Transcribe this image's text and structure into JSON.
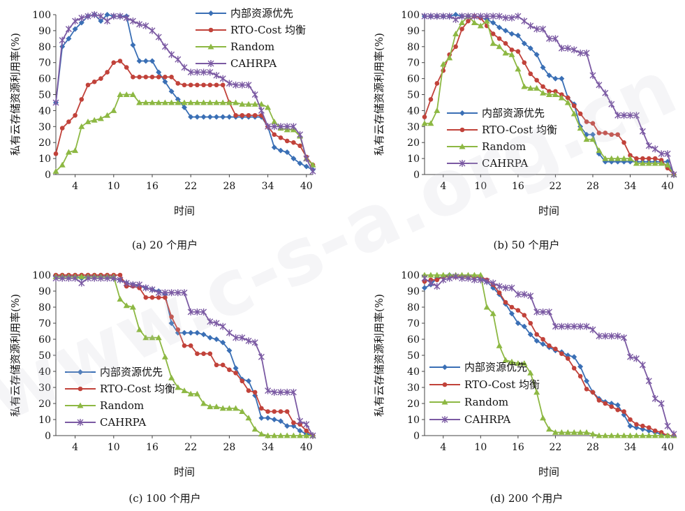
{
  "watermark": "www.c-s-a.org.cn",
  "charts": [
    {
      "type": "line",
      "caption": "(a) 20 个用户",
      "xlabel": "时间",
      "ylabel": "私有云存储资源利用率(%)",
      "xticks": [
        4,
        10,
        16,
        22,
        28,
        34,
        40
      ],
      "xlim": [
        1,
        41
      ],
      "ylim": [
        0,
        100
      ],
      "yticks": [
        0,
        10,
        20,
        30,
        40,
        50,
        60,
        70,
        80,
        90,
        100
      ],
      "legend_position": "top-right",
      "series": [
        {
          "name": "内部资源优先",
          "color": "#3a6fb5",
          "marker": "diamond",
          "values": [
            45,
            80,
            85,
            91,
            95,
            99,
            100,
            96,
            100,
            99,
            99,
            99,
            81,
            71,
            71,
            71,
            64,
            58,
            52,
            47,
            42,
            36,
            36,
            36,
            36,
            36,
            36,
            36,
            36,
            36,
            36,
            36,
            36,
            30,
            17,
            15,
            14,
            10,
            7,
            5,
            3
          ]
        },
        {
          "name": "RTO-Cost 均衡",
          "color": "#c1423a",
          "marker": "circle",
          "values": [
            13,
            29,
            33,
            37,
            47,
            56,
            58,
            60,
            64,
            70,
            71,
            67,
            61,
            61,
            61,
            61,
            61,
            61,
            61,
            57,
            56,
            56,
            56,
            56,
            56,
            56,
            56,
            45,
            37,
            37,
            37,
            37,
            37,
            30,
            25,
            23,
            21,
            20,
            18,
            11,
            6
          ]
        },
        {
          "name": "Random",
          "color": "#8db843",
          "marker": "triangle",
          "values": [
            2,
            6,
            14,
            15,
            30,
            33,
            34,
            35,
            37,
            40,
            50,
            50,
            50,
            45,
            45,
            45,
            45,
            45,
            45,
            45,
            45,
            45,
            45,
            45,
            45,
            45,
            45,
            45,
            45,
            44,
            44,
            44,
            44,
            42,
            33,
            29,
            28,
            28,
            24,
            10,
            6
          ]
        },
        {
          "name": "CAHRPA",
          "color": "#7b5aa3",
          "marker": "star",
          "values": [
            45,
            84,
            91,
            96,
            98,
            99,
            100,
            99,
            96,
            99,
            99,
            98,
            96,
            94,
            93,
            90,
            86,
            80,
            75,
            72,
            67,
            64,
            64,
            64,
            64,
            62,
            60,
            57,
            56,
            56,
            56,
            50,
            40,
            30,
            30,
            30,
            30,
            30,
            25,
            10,
            2
          ]
        }
      ]
    },
    {
      "type": "line",
      "caption": "(b) 50 个用户",
      "xlabel": "时间",
      "ylabel": "私有云存储资源利用率(%)",
      "xticks": [
        4,
        10,
        16,
        22,
        28,
        34,
        40
      ],
      "xlim": [
        1,
        41
      ],
      "ylim": [
        0,
        100
      ],
      "yticks": [
        0,
        10,
        20,
        30,
        40,
        50,
        60,
        70,
        80,
        90,
        100
      ],
      "legend_position": "middle-left",
      "series": [
        {
          "name": "内部资源优先",
          "color": "#3a6fb5",
          "marker": "diamond",
          "values": [
            99,
            99,
            99,
            99,
            99,
            100,
            99,
            99,
            99,
            98,
            97,
            95,
            92,
            90,
            88,
            87,
            82,
            79,
            75,
            67,
            62,
            60,
            60,
            48,
            44,
            30,
            25,
            25,
            13,
            8,
            8,
            8,
            8,
            8,
            8,
            8,
            8,
            8,
            8,
            8,
            0
          ]
        },
        {
          "name": "RTO-Cost 均衡",
          "color": "#c1423a",
          "marker": "circle",
          "values": [
            36,
            47,
            57,
            65,
            75,
            80,
            91,
            96,
            99,
            98,
            93,
            88,
            85,
            82,
            78,
            77,
            70,
            63,
            59,
            55,
            52,
            52,
            50,
            48,
            43,
            38,
            33,
            32,
            26,
            26,
            25,
            25,
            20,
            12,
            10,
            10,
            10,
            10,
            9,
            4,
            0
          ]
        },
        {
          "name": "Random",
          "color": "#8db843",
          "marker": "triangle",
          "values": [
            32,
            32,
            40,
            69,
            73,
            88,
            95,
            99,
            95,
            93,
            96,
            82,
            80,
            76,
            75,
            66,
            55,
            54,
            54,
            51,
            50,
            50,
            48,
            45,
            38,
            29,
            22,
            22,
            15,
            10,
            10,
            10,
            10,
            10,
            7,
            7,
            7,
            7,
            7,
            6,
            0
          ]
        },
        {
          "name": "CAHRPA",
          "color": "#7b5aa3",
          "marker": "star",
          "values": [
            99,
            99,
            99,
            99,
            99,
            97,
            99,
            99,
            99,
            99,
            99,
            99,
            99,
            98,
            98,
            99,
            96,
            93,
            91,
            91,
            85,
            85,
            79,
            79,
            78,
            76,
            76,
            62,
            56,
            51,
            44,
            37,
            37,
            37,
            37,
            27,
            18,
            16,
            13,
            13,
            0
          ]
        }
      ]
    },
    {
      "type": "line",
      "caption": "(c) 100 个用户",
      "xlabel": "时间",
      "ylabel": "私有云存储资源利用率(%)",
      "xticks": [
        4,
        10,
        16,
        22,
        28,
        34,
        40
      ],
      "xlim": [
        1,
        41
      ],
      "ylim": [
        0,
        100
      ],
      "yticks": [
        0,
        10,
        20,
        30,
        40,
        50,
        60,
        70,
        80,
        90,
        100
      ],
      "legend_position": "bottom-left",
      "series": [
        {
          "name": "内部资源优先",
          "color": "#3a6fb5",
          "marker": "diamond",
          "values": [
            99,
            99,
            99,
            99,
            98,
            99,
            99,
            99,
            99,
            98,
            97,
            95,
            94,
            93,
            92,
            91,
            90,
            88,
            70,
            64,
            64,
            64,
            64,
            63,
            61,
            60,
            58,
            53,
            42,
            35,
            34,
            25,
            11,
            11,
            10,
            9,
            6,
            6,
            3,
            1,
            0
          ]
        },
        {
          "name": "RTO-Cost 均衡",
          "color": "#c1423a",
          "marker": "circle",
          "values": [
            100,
            100,
            100,
            100,
            100,
            100,
            100,
            100,
            100,
            100,
            100,
            93,
            93,
            92,
            86,
            86,
            86,
            86,
            74,
            66,
            56,
            56,
            51,
            51,
            51,
            44,
            44,
            41,
            39,
            34,
            28,
            27,
            17,
            15,
            15,
            15,
            15,
            8,
            7,
            3,
            0
          ]
        },
        {
          "name": "Random",
          "color": "#8db843",
          "marker": "triangle",
          "values": [
            99,
            99,
            99,
            99,
            99,
            99,
            99,
            99,
            99,
            99,
            85,
            81,
            80,
            66,
            61,
            61,
            61,
            49,
            36,
            30,
            28,
            26,
            26,
            20,
            18,
            18,
            17,
            17,
            17,
            15,
            11,
            4,
            1,
            0,
            0,
            0,
            0,
            0,
            0,
            0,
            0
          ]
        },
        {
          "name": "CAHRPA",
          "color": "#7b5aa3",
          "marker": "star",
          "values": [
            98,
            98,
            98,
            98,
            95,
            98,
            98,
            98,
            98,
            98,
            97,
            95,
            94,
            94,
            92,
            91,
            89,
            89,
            89,
            89,
            89,
            77,
            77,
            77,
            71,
            70,
            68,
            64,
            61,
            61,
            59,
            58,
            49,
            28,
            27,
            27,
            27,
            27,
            9,
            7,
            0
          ]
        }
      ]
    },
    {
      "type": "line",
      "caption": "(d) 200 个用户",
      "xlabel": "时间",
      "ylabel": "私有云存储资源利用率(%)",
      "xticks": [
        4,
        10,
        16,
        22,
        28,
        34,
        40
      ],
      "xlim": [
        1,
        41
      ],
      "ylim": [
        0,
        100
      ],
      "yticks": [
        0,
        10,
        20,
        30,
        40,
        50,
        60,
        70,
        80,
        90,
        100
      ],
      "legend_position": "middle-right",
      "series": [
        {
          "name": "内部资源优先",
          "color": "#3a6fb5",
          "marker": "diamond",
          "values": [
            92,
            94,
            98,
            99,
            100,
            99,
            99,
            99,
            99,
            98,
            96,
            92,
            88,
            82,
            76,
            70,
            68,
            63,
            59,
            57,
            55,
            53,
            52,
            50,
            49,
            43,
            34,
            27,
            23,
            21,
            20,
            19,
            13,
            6,
            5,
            4,
            3,
            2,
            1,
            0,
            0
          ]
        },
        {
          "name": "RTO-Cost 均衡",
          "color": "#c1423a",
          "marker": "circle",
          "values": [
            96,
            97,
            97,
            99,
            99,
            99,
            99,
            99,
            99,
            99,
            97,
            94,
            89,
            83,
            80,
            78,
            75,
            70,
            63,
            60,
            56,
            54,
            51,
            48,
            42,
            37,
            29,
            27,
            22,
            20,
            18,
            16,
            15,
            10,
            7,
            6,
            5,
            3,
            2,
            0,
            0
          ]
        },
        {
          "name": "Random",
          "color": "#8db843",
          "marker": "triangle",
          "values": [
            100,
            100,
            100,
            100,
            100,
            100,
            100,
            100,
            100,
            100,
            80,
            76,
            56,
            47,
            46,
            45,
            45,
            39,
            27,
            11,
            4,
            2,
            2,
            2,
            2,
            2,
            2,
            1,
            0,
            0,
            0,
            0,
            0,
            0,
            0,
            0,
            0,
            0,
            0,
            0,
            0
          ]
        },
        {
          "name": "CAHRPA",
          "color": "#7b5aa3",
          "marker": "star",
          "values": [
            98,
            95,
            93,
            97,
            98,
            99,
            98,
            98,
            97,
            97,
            96,
            95,
            93,
            92,
            92,
            88,
            88,
            87,
            77,
            77,
            77,
            68,
            68,
            68,
            68,
            68,
            68,
            66,
            62,
            62,
            62,
            62,
            61,
            49,
            48,
            44,
            34,
            23,
            20,
            6,
            1
          ]
        }
      ]
    }
  ]
}
